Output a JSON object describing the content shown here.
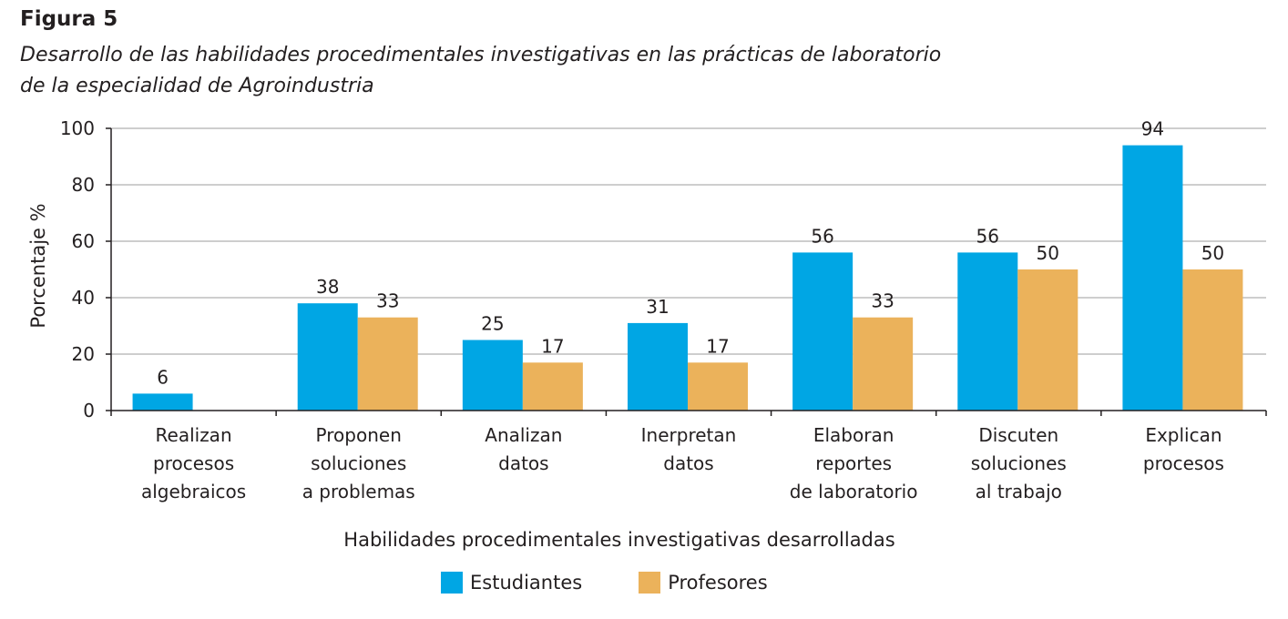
{
  "figure": {
    "label": "Figura 5",
    "title_line1": "Desarrollo de las habilidades procedimentales investigativas en las prácticas de laboratorio",
    "title_line2": "de la especialidad de Agroindustria"
  },
  "colors": {
    "estudiantes": "#00a6e4",
    "profesores": "#ebb25b",
    "grid": "#9d9d9c",
    "axis": "#231f20"
  },
  "chart_data": {
    "type": "bar",
    "title": "Desarrollo de las habilidades procedimentales investigativas en las prácticas de laboratorio de la especialidad de Agroindustria",
    "xlabel": "Habilidades procedimentales investigativas desarrolladas",
    "ylabel": "Porcentaje %",
    "ylim": [
      0,
      100
    ],
    "yticks": [
      0,
      20,
      40,
      60,
      80,
      100
    ],
    "grid": true,
    "legend_position": "bottom-center",
    "categories": [
      [
        "Realizan",
        "procesos",
        "algebraicos"
      ],
      [
        "Proponen",
        "soluciones",
        "a problemas"
      ],
      [
        "Analizan",
        "datos"
      ],
      [
        "Inerpretan",
        "datos"
      ],
      [
        "Elaboran",
        "reportes",
        "de laboratorio"
      ],
      [
        "Discuten",
        "soluciones",
        "al trabajo"
      ],
      [
        "Explican",
        "procesos"
      ]
    ],
    "series": [
      {
        "name": "Estudiantes",
        "values": [
          6,
          38,
          25,
          31,
          56,
          56,
          94
        ]
      },
      {
        "name": "Profesores",
        "values": [
          null,
          33,
          17,
          17,
          33,
          50,
          50
        ]
      }
    ]
  },
  "legend": {
    "items": [
      "Estudiantes",
      "Profesores"
    ]
  }
}
